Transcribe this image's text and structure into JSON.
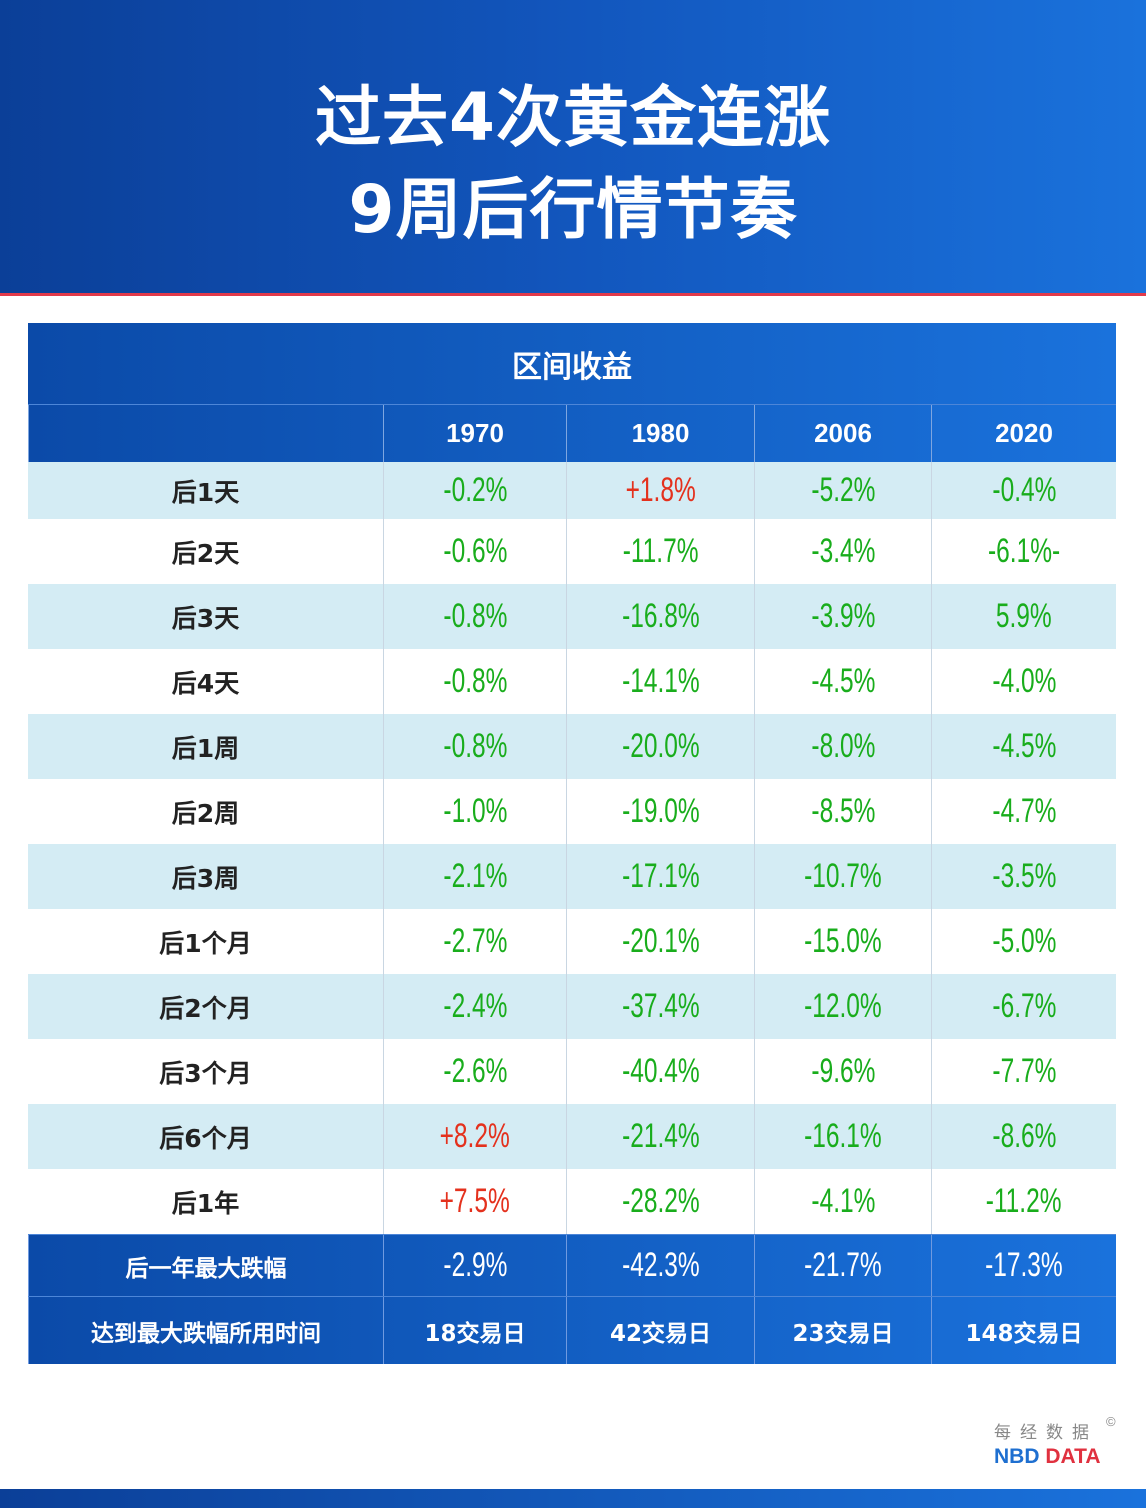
{
  "title_lines": [
    "过去4次黄金连涨",
    "9周后行情节奏"
  ],
  "table": {
    "caption": "区间收益",
    "columns": [
      "",
      "1970",
      "1980",
      "2006",
      "2020"
    ],
    "rows": [
      {
        "label": "后1天",
        "values": [
          "-0.2%",
          "+1.8%",
          "-5.2%",
          "-0.4%"
        ]
      },
      {
        "label": "后2天",
        "values": [
          "-0.6%",
          "-11.7%",
          "-3.4%",
          "-6.1%-"
        ]
      },
      {
        "label": "后3天",
        "values": [
          "-0.8%",
          "-16.8%",
          "-3.9%",
          "5.9%"
        ]
      },
      {
        "label": "后4天",
        "values": [
          "-0.8%",
          "-14.1%",
          "-4.5%",
          "-4.0%"
        ]
      },
      {
        "label": "后1周",
        "values": [
          "-0.8%",
          "-20.0%",
          "-8.0%",
          "-4.5%"
        ]
      },
      {
        "label": "后2周",
        "values": [
          "-1.0%",
          "-19.0%",
          "-8.5%",
          "-4.7%"
        ]
      },
      {
        "label": "后3周",
        "values": [
          "-2.1%",
          "-17.1%",
          "-10.7%",
          "-3.5%"
        ]
      },
      {
        "label": "后1个月",
        "values": [
          "-2.7%",
          "-20.1%",
          "-15.0%",
          "-5.0%"
        ]
      },
      {
        "label": "后2个月",
        "values": [
          "-2.4%",
          "-37.4%",
          "-12.0%",
          "-6.7%"
        ]
      },
      {
        "label": "后3个月",
        "values": [
          "-2.6%",
          "-40.4%",
          "-9.6%",
          "-7.7%"
        ]
      },
      {
        "label": "后6个月",
        "values": [
          "+8.2%",
          "-21.4%",
          "-16.1%",
          "-8.6%"
        ]
      },
      {
        "label": "后1年",
        "values": [
          "+7.5%",
          "-28.2%",
          "-4.1%",
          "-11.2%"
        ]
      }
    ],
    "max_drawdown": {
      "label": "后一年最大跌幅",
      "values": [
        "-2.9%",
        "-42.3%",
        "-21.7%",
        "-17.3%"
      ]
    },
    "time_to_max": {
      "label": "达到最大跌幅所用时间",
      "values": [
        "18交易日",
        "42交易日",
        "23交易日",
        "148交易日"
      ]
    }
  },
  "colors": {
    "negative": "#19ad1c",
    "positive": "#e4311d",
    "header_blue": "#0b4aa8",
    "row_alt": "#d4ecf4"
  },
  "logo": {
    "cn": "每经数据",
    "copyright": "©",
    "en_1": "NBD",
    "en_2": "DATA"
  }
}
